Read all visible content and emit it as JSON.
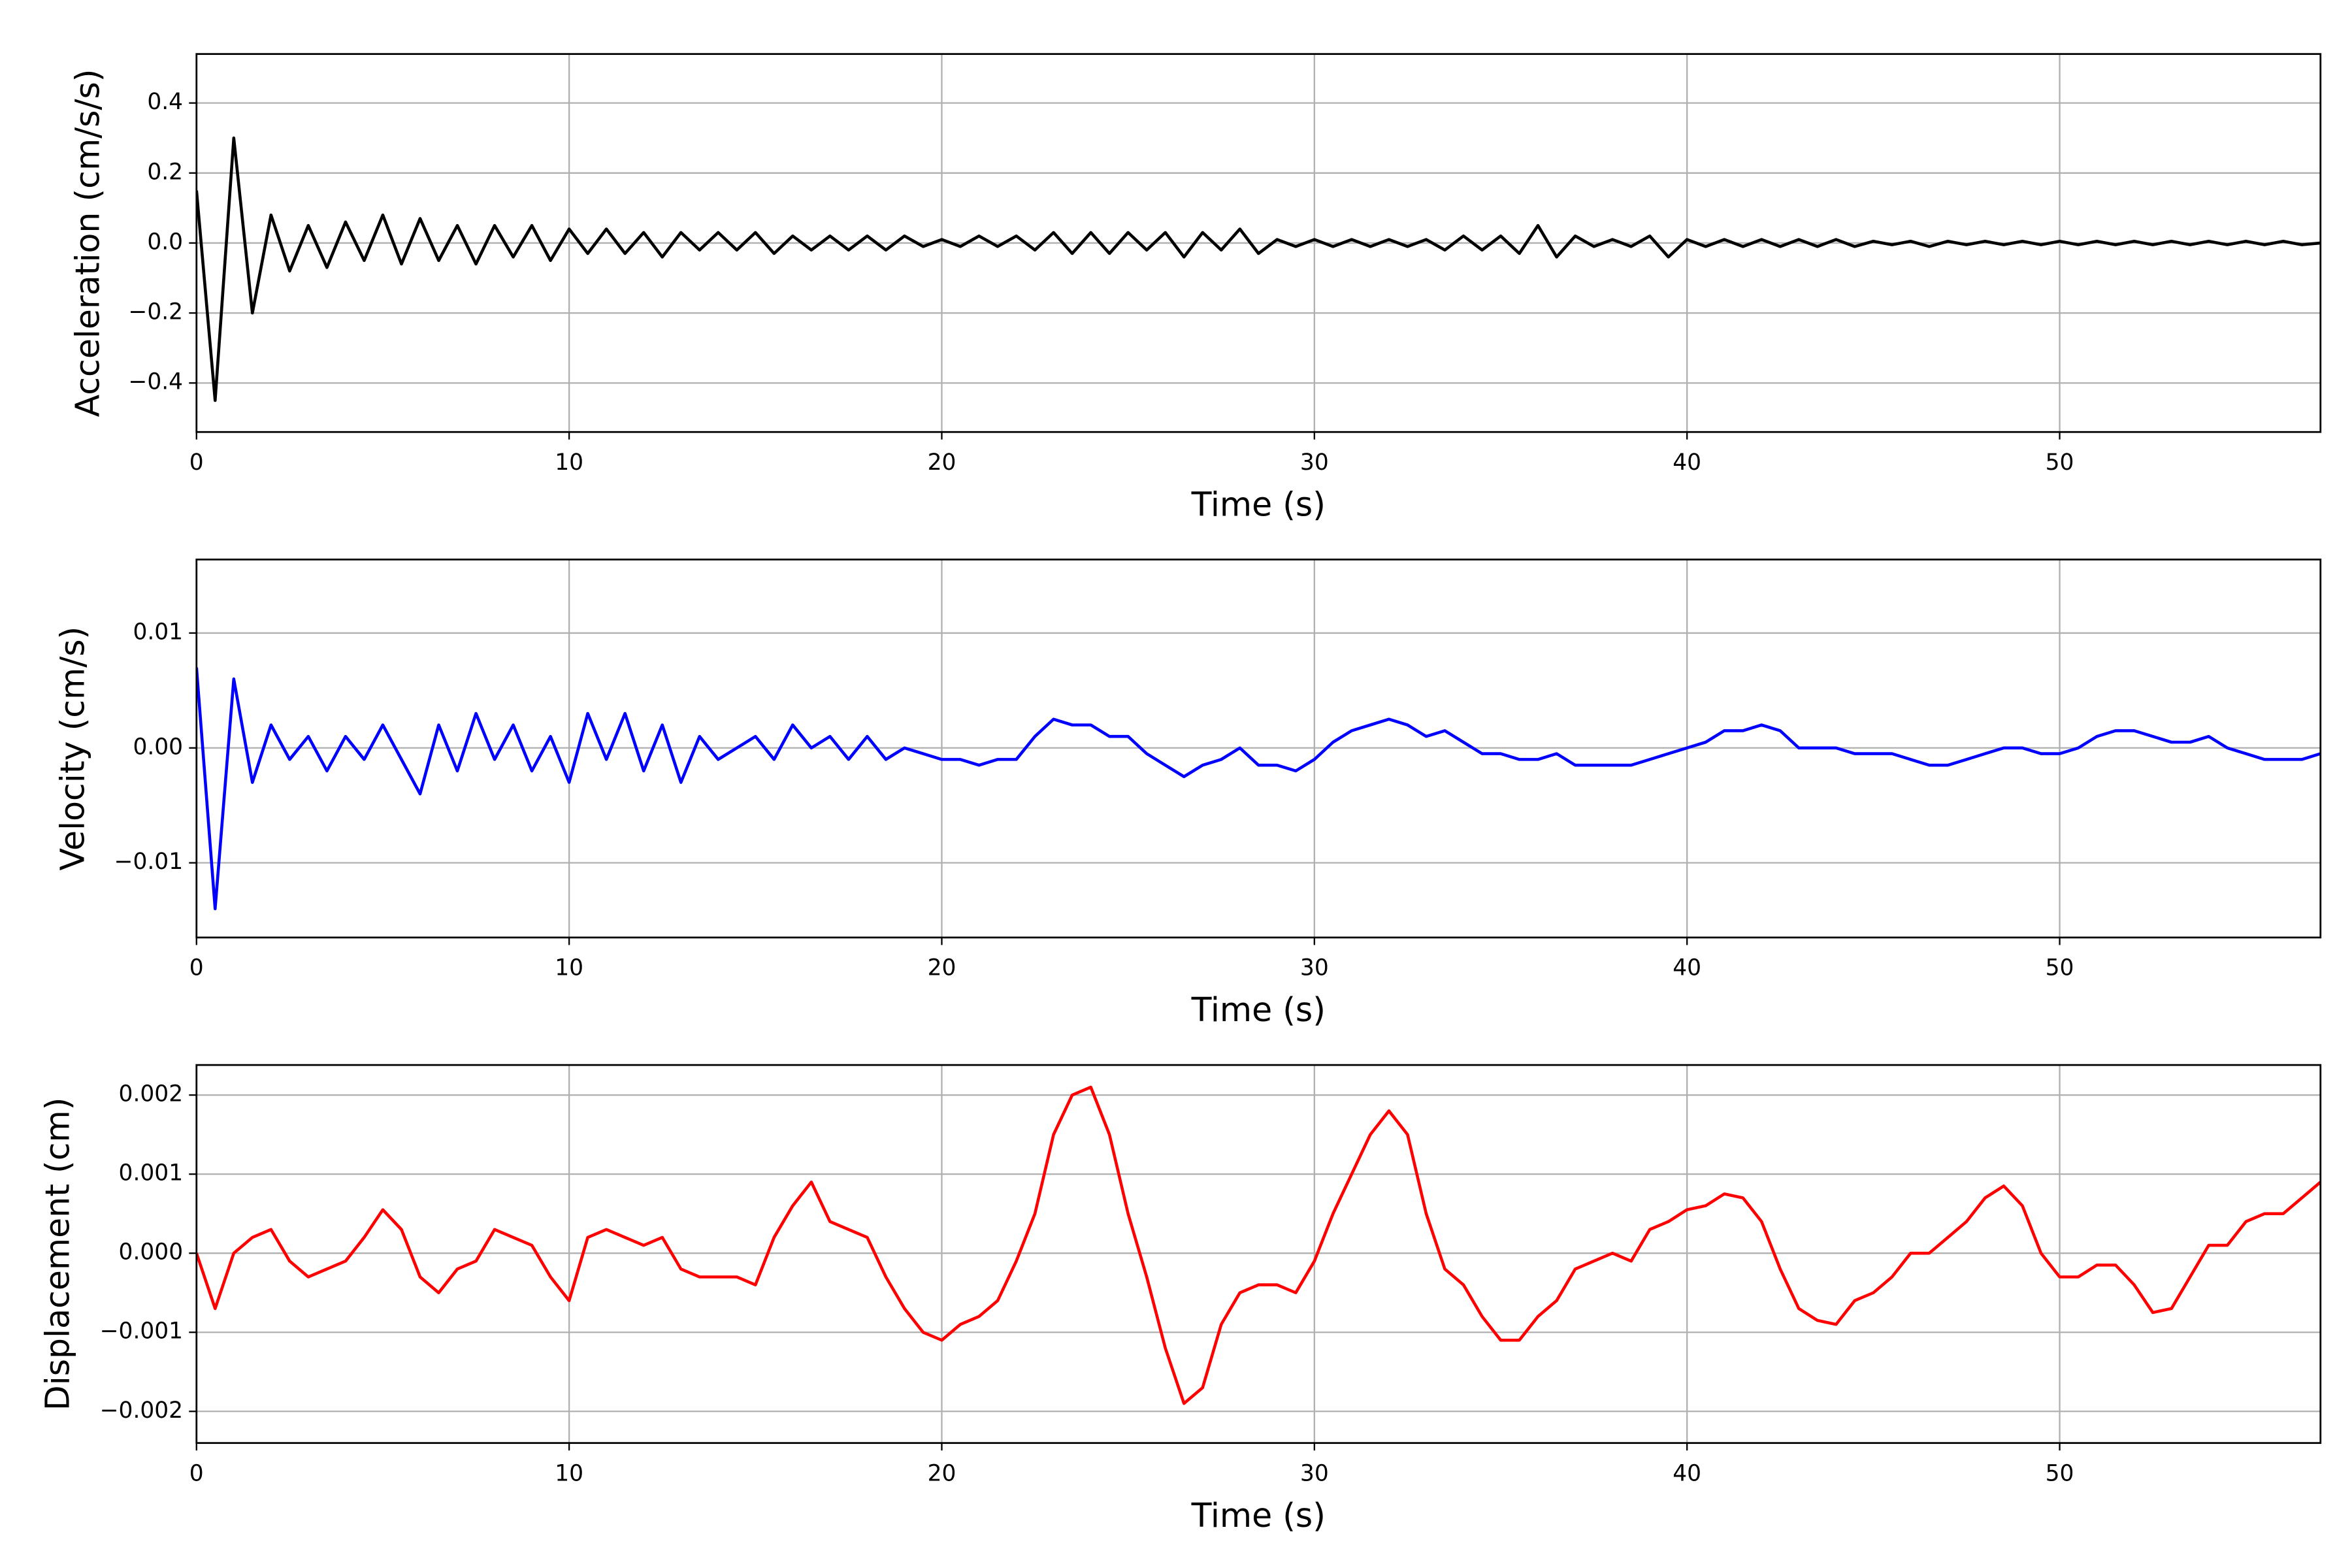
{
  "chart_data": [
    {
      "type": "line",
      "ylabel": "Acceleration (cm/s/s)",
      "xlabel": "Time (s)",
      "grid": true,
      "xlim": [
        0,
        57
      ],
      "xticks": [
        0,
        10,
        20,
        30,
        40,
        50
      ],
      "ylim": [
        -0.54,
        0.54
      ],
      "yticks": [
        {
          "value": -0.4,
          "label": "−0.4"
        },
        {
          "value": -0.2,
          "label": "−0.2"
        },
        {
          "value": 0,
          "label": "0.0"
        },
        0.2,
        0.4
      ],
      "x": [
        0,
        0.5,
        1,
        1.5,
        2,
        2.5,
        3,
        3.5,
        4,
        4.5,
        5,
        5.5,
        6,
        6.5,
        7,
        7.5,
        8,
        8.5,
        9,
        9.5,
        10,
        10.5,
        11,
        11.5,
        12,
        12.5,
        13,
        13.5,
        14,
        14.5,
        15,
        15.5,
        16,
        16.5,
        17,
        17.5,
        18,
        18.5,
        19,
        19.5,
        20,
        20.5,
        21,
        21.5,
        22,
        22.5,
        23,
        23.5,
        24,
        24.5,
        25,
        25.5,
        26,
        26.5,
        27,
        27.5,
        28,
        28.5,
        29,
        29.5,
        30,
        30.5,
        31,
        31.5,
        32,
        32.5,
        33,
        33.5,
        34,
        34.5,
        35,
        35.5,
        36,
        36.5,
        37,
        37.5,
        38,
        38.5,
        39,
        39.5,
        40,
        40.5,
        41,
        41.5,
        42,
        42.5,
        43,
        43.5,
        44,
        44.5,
        45,
        45.5,
        46,
        46.5,
        47,
        47.5,
        48,
        48.5,
        49,
        49.5,
        50,
        50.5,
        51,
        51.5,
        52,
        52.5,
        53,
        53.5,
        54,
        54.5,
        55,
        55.5,
        56,
        56.5,
        57
      ],
      "series": [
        {
          "color": "#000000",
          "values": [
            0.15,
            -0.45,
            0.3,
            -0.2,
            0.08,
            -0.08,
            0.05,
            -0.07,
            0.06,
            -0.05,
            0.08,
            -0.06,
            0.07,
            -0.05,
            0.05,
            -0.06,
            0.05,
            -0.04,
            0.05,
            -0.05,
            0.04,
            -0.03,
            0.04,
            -0.03,
            0.03,
            -0.04,
            0.03,
            -0.02,
            0.03,
            -0.02,
            0.03,
            -0.03,
            0.02,
            -0.02,
            0.02,
            -0.02,
            0.02,
            -0.02,
            0.02,
            -0.01,
            0.01,
            -0.01,
            0.02,
            -0.01,
            0.02,
            -0.02,
            0.03,
            -0.03,
            0.03,
            -0.03,
            0.03,
            -0.02,
            0.03,
            -0.04,
            0.03,
            -0.02,
            0.04,
            -0.03,
            0.01,
            -0.01,
            0.01,
            -0.01,
            0.01,
            -0.01,
            0.01,
            -0.01,
            0.01,
            -0.02,
            0.02,
            -0.02,
            0.02,
            -0.03,
            0.05,
            -0.04,
            0.02,
            -0.01,
            0.01,
            -0.01,
            0.02,
            -0.04,
            0.01,
            -0.01,
            0.01,
            -0.01,
            0.01,
            -0.01,
            0.01,
            -0.01,
            0.01,
            -0.01,
            0.005,
            -0.005,
            0.005,
            -0.01,
            0.005,
            -0.005,
            0.005,
            -0.005,
            0.005,
            -0.005,
            0.005,
            -0.005,
            0.005,
            -0.005,
            0.005,
            -0.005,
            0.005,
            -0.005,
            0.005,
            -0.005,
            0.005,
            -0.005,
            0.005,
            -0.005,
            0
          ]
        }
      ]
    },
    {
      "type": "line",
      "ylabel": "Velocity (cm/s)",
      "xlabel": "Time (s)",
      "grid": true,
      "xlim": [
        0,
        57
      ],
      "xticks": [
        0,
        10,
        20,
        30,
        40,
        50
      ],
      "ylim": [
        -0.0165,
        0.0164
      ],
      "yticks": [
        {
          "value": -0.01,
          "label": "−0.01"
        },
        {
          "value": 0,
          "label": "0.00"
        },
        0.01
      ],
      "x": [
        0,
        0.5,
        1,
        1.5,
        2,
        2.5,
        3,
        3.5,
        4,
        4.5,
        5,
        5.5,
        6,
        6.5,
        7,
        7.5,
        8,
        8.5,
        9,
        9.5,
        10,
        10.5,
        11,
        11.5,
        12,
        12.5,
        13,
        13.5,
        14,
        14.5,
        15,
        15.5,
        16,
        16.5,
        17,
        17.5,
        18,
        18.5,
        19,
        19.5,
        20,
        20.5,
        21,
        21.5,
        22,
        22.5,
        23,
        23.5,
        24,
        24.5,
        25,
        25.5,
        26,
        26.5,
        27,
        27.5,
        28,
        28.5,
        29,
        29.5,
        30,
        30.5,
        31,
        31.5,
        32,
        32.5,
        33,
        33.5,
        34,
        34.5,
        35,
        35.5,
        36,
        36.5,
        37,
        37.5,
        38,
        38.5,
        39,
        39.5,
        40,
        40.5,
        41,
        41.5,
        42,
        42.5,
        43,
        43.5,
        44,
        44.5,
        45,
        45.5,
        46,
        46.5,
        47,
        47.5,
        48,
        48.5,
        49,
        49.5,
        50,
        50.5,
        51,
        51.5,
        52,
        52.5,
        53,
        53.5,
        54,
        54.5,
        55,
        55.5,
        56,
        56.5,
        57
      ],
      "series": [
        {
          "color": "#0000ff",
          "values": [
            0.007,
            -0.014,
            0.006,
            -0.003,
            0.002,
            -0.001,
            0.001,
            -0.002,
            0.001,
            -0.001,
            0.002,
            -0.001,
            -0.004,
            0.002,
            -0.002,
            0.003,
            -0.001,
            0.002,
            -0.002,
            0.001,
            -0.003,
            0.003,
            -0.001,
            0.003,
            -0.002,
            0.002,
            -0.003,
            0.001,
            -0.001,
            0,
            0.001,
            -0.001,
            0.002,
            0,
            0.001,
            -0.001,
            0.001,
            -0.001,
            0,
            -0.0005,
            -0.001,
            -0.001,
            -0.0015,
            -0.001,
            -0.001,
            0.001,
            0.0025,
            0.002,
            0.002,
            0.001,
            0.001,
            -0.0005,
            -0.0015,
            -0.0025,
            -0.0015,
            -0.001,
            0,
            -0.0015,
            -0.0015,
            -0.002,
            -0.001,
            0.0005,
            0.0015,
            0.002,
            0.0025,
            0.002,
            0.001,
            0.0015,
            0.0005,
            -0.0005,
            -0.0005,
            -0.001,
            -0.001,
            -0.0005,
            -0.0015,
            -0.0015,
            -0.0015,
            -0.0015,
            -0.001,
            -0.0005,
            0,
            0.0005,
            0.0015,
            0.0015,
            0.002,
            0.0015,
            0,
            0,
            0,
            -0.0005,
            -0.0005,
            -0.0005,
            -0.001,
            -0.0015,
            -0.0015,
            -0.001,
            -0.0005,
            0,
            0,
            -0.0005,
            -0.0005,
            0,
            0.001,
            0.0015,
            0.0015,
            0.001,
            0.0005,
            0.0005,
            0.001,
            0,
            -0.0005,
            -0.001,
            -0.001,
            -0.001,
            -0.0005
          ]
        }
      ]
    },
    {
      "type": "line",
      "ylabel": "Displacement (cm)",
      "xlabel": "Time (s)",
      "grid": true,
      "xlim": [
        0,
        57
      ],
      "xticks": [
        0,
        10,
        20,
        30,
        40,
        50
      ],
      "ylim": [
        -0.0024,
        0.00238
      ],
      "yticks": [
        {
          "value": -0.002,
          "label": "−0.002"
        },
        {
          "value": -0.001,
          "label": "−0.001"
        },
        {
          "value": 0,
          "label": "0.000"
        },
        0.001,
        0.002
      ],
      "x": [
        0,
        0.5,
        1,
        1.5,
        2,
        2.5,
        3,
        3.5,
        4,
        4.5,
        5,
        5.5,
        6,
        6.5,
        7,
        7.5,
        8,
        8.5,
        9,
        9.5,
        10,
        10.5,
        11,
        11.5,
        12,
        12.5,
        13,
        13.5,
        14,
        14.5,
        15,
        15.5,
        16,
        16.5,
        17,
        17.5,
        18,
        18.5,
        19,
        19.5,
        20,
        20.5,
        21,
        21.5,
        22,
        22.5,
        23,
        23.5,
        24,
        24.5,
        25,
        25.5,
        26,
        26.5,
        27,
        27.5,
        28,
        28.5,
        29,
        29.5,
        30,
        30.5,
        31,
        31.5,
        32,
        32.5,
        33,
        33.5,
        34,
        34.5,
        35,
        35.5,
        36,
        36.5,
        37,
        37.5,
        38,
        38.5,
        39,
        39.5,
        40,
        40.5,
        41,
        41.5,
        42,
        42.5,
        43,
        43.5,
        44,
        44.5,
        45,
        45.5,
        46,
        46.5,
        47,
        47.5,
        48,
        48.5,
        49,
        49.5,
        50,
        50.5,
        51,
        51.5,
        52,
        52.5,
        53,
        53.5,
        54,
        54.5,
        55,
        55.5,
        56,
        56.5,
        57
      ],
      "series": [
        {
          "color": "#ff0000",
          "values": [
            0,
            -0.0007,
            0,
            0.0002,
            0.0003,
            -0.0001,
            -0.0003,
            -0.0002,
            -0.0001,
            0.0002,
            0.00055,
            0.0003,
            -0.0003,
            -0.0005,
            -0.0002,
            -0.0001,
            0.0003,
            0.0002,
            0.0001,
            -0.0003,
            -0.0006,
            0.0002,
            0.0003,
            0.0002,
            0.0001,
            0.0002,
            -0.0002,
            -0.0003,
            -0.0003,
            -0.0003,
            -0.0004,
            0.0002,
            0.0006,
            0.0009,
            0.0004,
            0.0003,
            0.0002,
            -0.0003,
            -0.0007,
            -0.001,
            -0.0011,
            -0.0009,
            -0.0008,
            -0.0006,
            -0.0001,
            0.0005,
            0.0015,
            0.002,
            0.0021,
            0.0015,
            0.0005,
            -0.0003,
            -0.0012,
            -0.0019,
            -0.0017,
            -0.0009,
            -0.0005,
            -0.0004,
            -0.0004,
            -0.0005,
            -0.0001,
            0.0005,
            0.001,
            0.0015,
            0.0018,
            0.0015,
            0.0005,
            -0.0002,
            -0.0004,
            -0.0008,
            -0.0011,
            -0.0011,
            -0.0008,
            -0.0006,
            -0.0002,
            -0.0001,
            0,
            -0.0001,
            0.0003,
            0.0004,
            0.00055,
            0.0006,
            0.00075,
            0.0007,
            0.0004,
            -0.0002,
            -0.0007,
            -0.00085,
            -0.0009,
            -0.0006,
            -0.0005,
            -0.0003,
            0,
            0,
            0.0002,
            0.0004,
            0.0007,
            0.00085,
            0.0006,
            0,
            -0.0003,
            -0.0003,
            -0.00015,
            -0.00015,
            -0.0004,
            -0.00075,
            -0.0007,
            -0.0003,
            0.0001,
            0.0001,
            0.0004,
            0.0005,
            0.0005,
            0.0007,
            0.0009
          ]
        }
      ]
    }
  ]
}
